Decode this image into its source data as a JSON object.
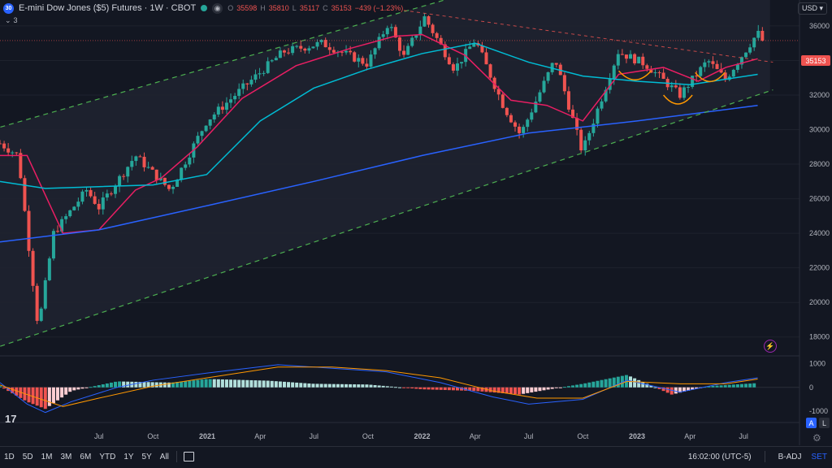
{
  "header": {
    "symbol_badge": "30",
    "title": "E-mini Dow Jones ($5) Futures · 1W · CBOT",
    "ohlc": {
      "o_label": "O",
      "o": "35598",
      "h_label": "H",
      "h": "35810",
      "l_label": "L",
      "l": "35117",
      "c_label": "C",
      "c": "35153",
      "change": "−439 (−1.23%)"
    },
    "indicator_toggle": "3"
  },
  "currency": "USD",
  "last_price": "35153",
  "bottom_bar": {
    "timeframes": [
      "1D",
      "5D",
      "1M",
      "3M",
      "6M",
      "YTD",
      "1Y",
      "5Y",
      "All"
    ],
    "time": "16:02:00 (UTC-5)",
    "badj": "B-ADJ",
    "set": "SET"
  },
  "scale_buttons": {
    "auto": "A",
    "log": "L"
  },
  "colors": {
    "bg": "#131722",
    "up": "#26a69a",
    "down": "#ef5350",
    "ma_fast": "#e91e63",
    "ma_mid": "#00bcd4",
    "ma_slow": "#2962ff",
    "channel": "#4caf50",
    "resistance": "#ef5350",
    "cup": "#ff9800",
    "macd_line": "#2962ff",
    "signal_line": "#ff9800"
  },
  "chart_data": [
    {
      "type": "line",
      "title": "E-mini Dow Jones ($5) Futures · 1W · CBOT",
      "x_tick_labels": [
        "Jul",
        "Oct",
        "2021",
        "Apr",
        "Jul",
        "Oct",
        "2022",
        "Apr",
        "Jul",
        "Oct",
        "2023",
        "Apr",
        "Jul"
      ],
      "y_tick_labels": [
        "36000",
        "34000",
        "32000",
        "30000",
        "28000",
        "26000",
        "24000",
        "22000",
        "20000",
        "18000"
      ],
      "ylim": [
        17000,
        37500
      ],
      "xlim": [
        "2020-01-15",
        "2023-08-25"
      ],
      "grid": true,
      "price_path": {
        "x": [
          "2020-01-15",
          "2020-02-15",
          "2020-03-20",
          "2020-04-15",
          "2020-06-10",
          "2020-07-01",
          "2020-09-01",
          "2020-10-30",
          "2020-12-31",
          "2021-03-15",
          "2021-05-10",
          "2021-07-15",
          "2021-09-30",
          "2021-11-05",
          "2021-12-01",
          "2022-01-05",
          "2022-02-25",
          "2022-04-01",
          "2022-05-20",
          "2022-06-17",
          "2022-08-15",
          "2022-09-30",
          "2022-11-30",
          "2023-01-15",
          "2023-03-15",
          "2023-05-01",
          "2023-05-31",
          "2023-07-25",
          "2023-08-02"
        ],
        "close": [
          29200,
          28500,
          18500,
          24000,
          26500,
          25500,
          28500,
          26500,
          30500,
          32800,
          34500,
          35000,
          33800,
          36200,
          34200,
          36500,
          33500,
          35200,
          31300,
          29700,
          34100,
          28700,
          34500,
          33800,
          32000,
          34000,
          32900,
          35600,
          35153
        ]
      },
      "series": [
        {
          "name": "",
          "role": "ma_fast",
          "x": [
            "2020-01-15",
            "2020-03-01",
            "2020-05-01",
            "2020-07-01",
            "2020-09-01",
            "2020-10-15",
            "2020-12-15",
            "2021-03-01",
            "2021-06-01",
            "2021-09-01",
            "2021-11-15",
            "2022-01-01",
            "2022-03-15",
            "2022-06-01",
            "2022-08-01",
            "2022-10-01",
            "2022-12-01",
            "2023-02-15",
            "2023-04-15",
            "2023-06-01",
            "2023-07-25"
          ],
          "values": [
            28500,
            28500,
            24000,
            24200,
            26500,
            27200,
            29000,
            31800,
            33700,
            34700,
            35400,
            35500,
            34300,
            31700,
            31400,
            30500,
            33200,
            33600,
            32800,
            33600,
            34100
          ]
        },
        {
          "name": "",
          "role": "ma_mid",
          "x": [
            "2020-01-15",
            "2020-04-01",
            "2020-07-01",
            "2020-10-01",
            "2020-12-31",
            "2021-04-01",
            "2021-07-01",
            "2021-10-01",
            "2022-01-01",
            "2022-04-01",
            "2022-07-01",
            "2022-10-01",
            "2023-01-01",
            "2023-04-01",
            "2023-07-25"
          ],
          "values": [
            27000,
            26600,
            26700,
            26800,
            27400,
            30500,
            32400,
            33500,
            34400,
            35000,
            33900,
            33100,
            32800,
            32600,
            33200
          ]
        },
        {
          "name": "",
          "role": "ma_slow",
          "x": [
            "2020-01-15",
            "2020-07-01",
            "2021-01-01",
            "2021-07-01",
            "2022-01-01",
            "2022-07-01",
            "2023-01-01",
            "2023-07-25"
          ],
          "values": [
            23500,
            24200,
            25600,
            27000,
            28500,
            29800,
            30500,
            31400
          ]
        }
      ],
      "annotations": [
        {
          "name": "",
          "role": "channel_upper",
          "x": [
            "2020-01-01",
            "2022-06-01"
          ],
          "values": [
            30000,
            38600
          ]
        },
        {
          "name": "",
          "role": "channel_lower",
          "x": [
            "2020-01-01",
            "2023-08-20"
          ],
          "values": [
            17300,
            32300
          ]
        },
        {
          "name": "",
          "role": "resistance",
          "x": [
            "2021-12-01",
            "2023-08-20"
          ],
          "values": [
            36900,
            33900
          ]
        }
      ]
    },
    {
      "type": "bar",
      "title": "",
      "y_tick_labels": [
        "1000",
        "0",
        "-1000"
      ],
      "ylim": [
        -1300,
        1250
      ],
      "histogram": {
        "x": [
          "2020-01-15",
          "2020-03-01",
          "2020-04-01",
          "2020-05-15",
          "2020-08-01",
          "2020-11-01",
          "2021-01-01",
          "2021-04-15",
          "2021-07-01",
          "2021-10-01",
          "2022-01-01",
          "2022-04-01",
          "2022-06-15",
          "2022-08-01",
          "2022-10-01",
          "2022-12-15",
          "2023-03-01",
          "2023-05-01",
          "2023-07-25"
        ],
        "values": [
          50,
          -600,
          -900,
          -150,
          250,
          200,
          350,
          280,
          150,
          120,
          -80,
          -150,
          -300,
          -100,
          150,
          520,
          -300,
          50,
          180
        ]
      },
      "series": [
        {
          "name": "",
          "role": "macd_line",
          "x": [
            "2020-01-15",
            "2020-03-01",
            "2020-04-01",
            "2020-05-15",
            "2020-08-01",
            "2020-10-01",
            "2021-01-01",
            "2021-05-01",
            "2021-08-01",
            "2021-11-01",
            "2022-02-01",
            "2022-05-01",
            "2022-07-01",
            "2022-10-01",
            "2022-12-15",
            "2023-03-15",
            "2023-06-01",
            "2023-07-25"
          ],
          "values": [
            200,
            -700,
            -1050,
            -600,
            0,
            300,
            600,
            950,
            800,
            650,
            200,
            -400,
            -700,
            -500,
            300,
            -200,
            200,
            400
          ]
        },
        {
          "name": "",
          "role": "signal_line",
          "x": [
            "2020-01-15",
            "2020-03-01",
            "2020-05-01",
            "2020-07-01",
            "2020-10-01",
            "2021-01-01",
            "2021-05-01",
            "2021-08-01",
            "2021-11-01",
            "2022-02-01",
            "2022-05-01",
            "2022-07-15",
            "2022-10-01",
            "2022-12-15",
            "2023-03-15",
            "2023-06-01",
            "2023-07-25"
          ],
          "values": [
            100,
            -300,
            -800,
            -450,
            50,
            400,
            850,
            850,
            700,
            400,
            -150,
            -450,
            -450,
            250,
            150,
            150,
            350
          ]
        }
      ]
    }
  ]
}
